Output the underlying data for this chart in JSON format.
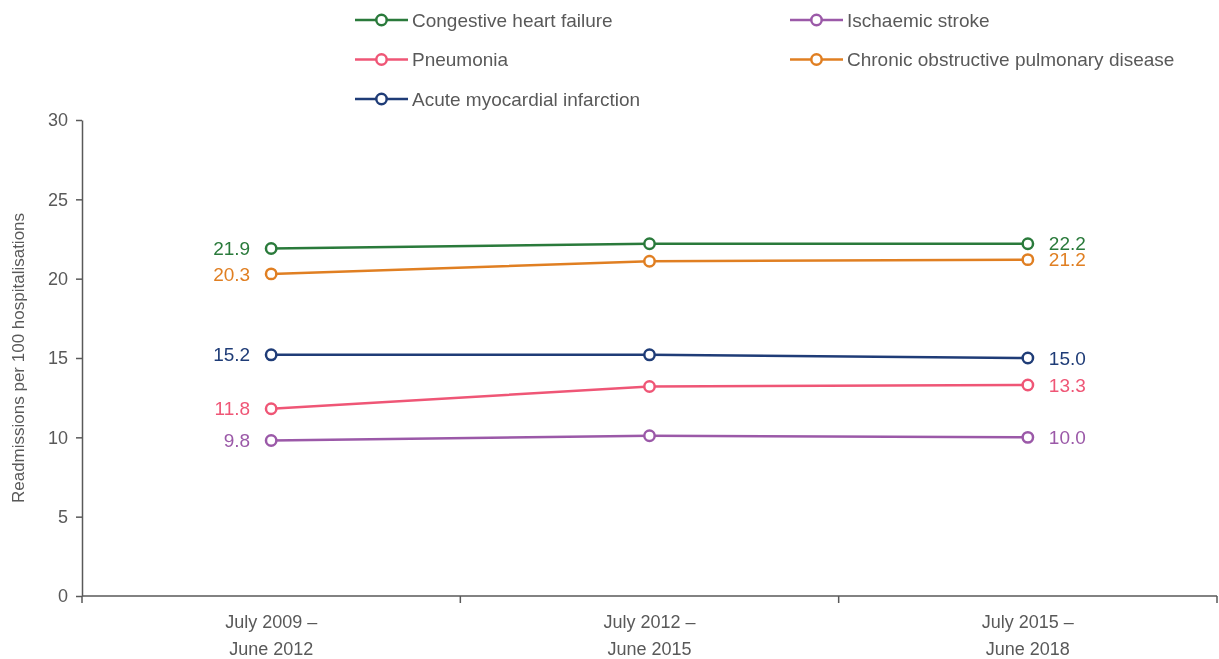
{
  "chart_data": {
    "type": "line",
    "ylabel": "Readmissions per 100 hospitalisations",
    "categories": [
      "July 2009 – June 2012",
      "July 2012 – June 2015",
      "July 2015 – June 2018"
    ],
    "series": [
      {
        "name": "Congestive heart failure",
        "color": "#2a7a3b",
        "values": [
          21.9,
          22.2,
          22.2
        ],
        "value_labels": [
          "21.9",
          null,
          "22.2"
        ]
      },
      {
        "name": "Ischaemic stroke",
        "color": "#9b59a8",
        "values": [
          9.8,
          10.1,
          10.0
        ],
        "value_labels": [
          "9.8",
          null,
          "10.0"
        ]
      },
      {
        "name": "Pneumonia",
        "color": "#ef5676",
        "values": [
          11.8,
          13.2,
          13.3
        ],
        "value_labels": [
          "11.8",
          null,
          "13.3"
        ]
      },
      {
        "name": "Chronic obstructive pulmonary disease",
        "color": "#e07f22",
        "values": [
          20.3,
          21.1,
          21.2
        ],
        "value_labels": [
          "20.3",
          null,
          "21.2"
        ]
      },
      {
        "name": "Acute myocardial infarction",
        "color": "#1f3c77",
        "values": [
          15.2,
          15.2,
          15.0
        ],
        "value_labels": [
          "15.2",
          null,
          "15.0"
        ]
      }
    ],
    "ylim": [
      0,
      30
    ],
    "yticks": [
      0,
      5,
      10,
      15,
      20,
      25,
      30
    ],
    "legend": "top",
    "marker": "circle",
    "line_style": "solid"
  }
}
